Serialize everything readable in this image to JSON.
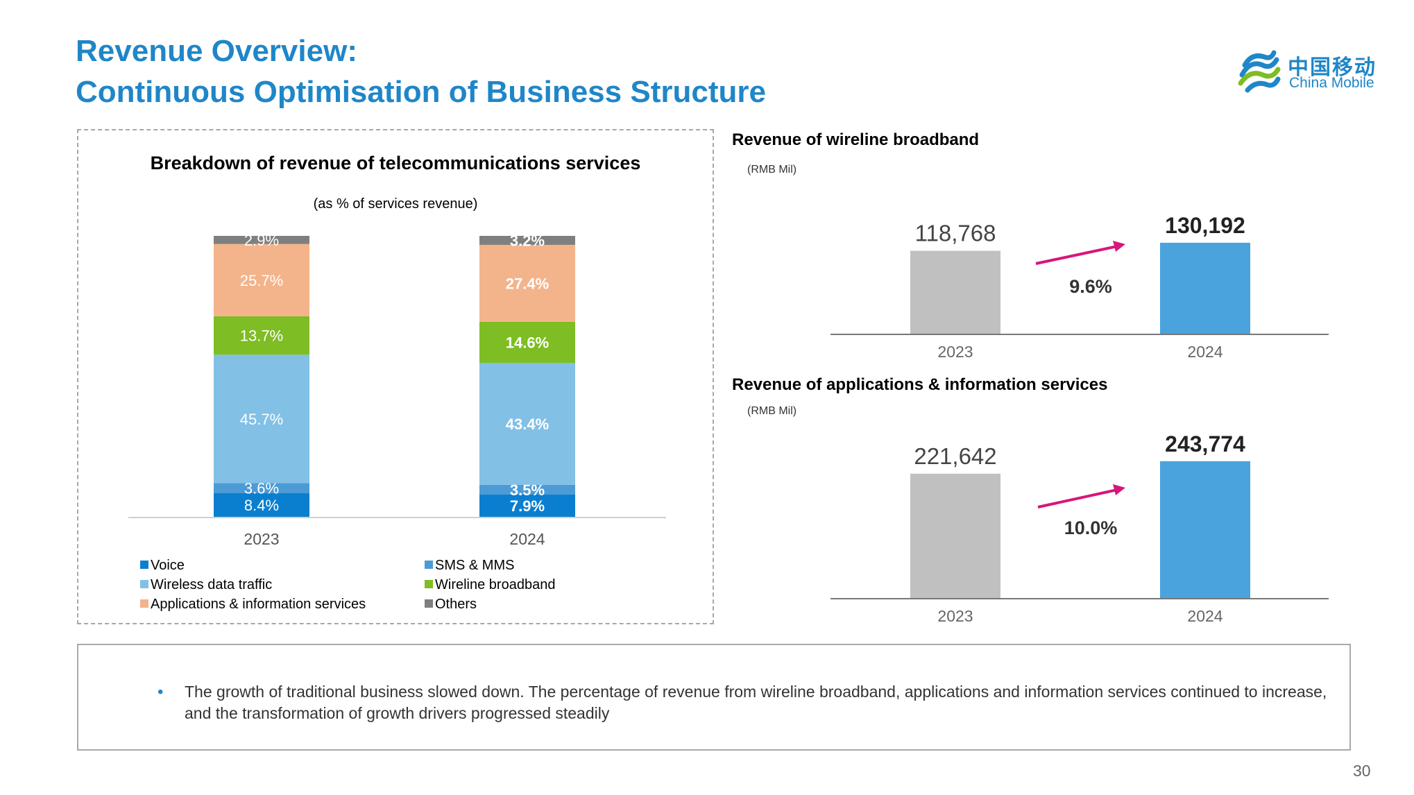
{
  "header": {
    "title_line1": "Revenue Overview:",
    "title_line2": "Continuous Optimisation of Business Structure",
    "logo_cn": "中国移动",
    "logo_en": "China Mobile",
    "page_number": "30"
  },
  "colors": {
    "accent": "#1f86c8",
    "bar_2023": "#c0c0c0",
    "bar_2024": "#4aa3dc",
    "growth_arrow": "#d6177a"
  },
  "chart_data": [
    {
      "type": "bar",
      "stacked": true,
      "title": "Breakdown of revenue of telecommunications services",
      "subtitle": "(as % of services revenue)",
      "categories": [
        "2023",
        "2024"
      ],
      "series": [
        {
          "name": "Voice",
          "values": [
            8.4,
            7.9
          ],
          "labels": [
            "8.4%",
            "7.9%"
          ],
          "color": "#0a7fcf"
        },
        {
          "name": "SMS & MMS",
          "values": [
            3.6,
            3.5
          ],
          "labels": [
            "3.6%",
            "3.5%"
          ],
          "color": "#4c9bd6"
        },
        {
          "name": "Wireless data traffic",
          "values": [
            45.7,
            43.4
          ],
          "labels": [
            "45.7%",
            "43.4%"
          ],
          "color": "#82c0e6"
        },
        {
          "name": "Wireline broadband",
          "values": [
            13.7,
            14.6
          ],
          "labels": [
            "13.7%",
            "14.6%"
          ],
          "color": "#7ebd23"
        },
        {
          "name": "Applications & information services",
          "values": [
            25.7,
            27.4
          ],
          "labels": [
            "25.7%",
            "27.4%"
          ],
          "color": "#f3b48b"
        },
        {
          "name": "Others",
          "values": [
            2.9,
            3.2
          ],
          "labels": [
            "2.9%",
            "3.2%"
          ],
          "color": "#7f7f7f"
        }
      ],
      "ylim": [
        0,
        100
      ],
      "grid": false,
      "legend": "bottom"
    },
    {
      "type": "bar",
      "title": "Revenue of wireline broadband",
      "unit": "(RMB Mil)",
      "categories": [
        "2023",
        "2024"
      ],
      "values": [
        118768,
        130192
      ],
      "value_labels": [
        "118,768",
        "130,192"
      ],
      "growth_label": "9.6%",
      "ylim": [
        0,
        140000
      ],
      "grid": false
    },
    {
      "type": "bar",
      "title": "Revenue of applications & information services",
      "unit": "(RMB Mil)",
      "categories": [
        "2023",
        "2024"
      ],
      "values": [
        221642,
        243774
      ],
      "value_labels": [
        "221,642",
        "243,774"
      ],
      "growth_label": "10.0%",
      "ylim": [
        0,
        262000
      ],
      "grid": false
    }
  ],
  "note": {
    "bullet": "•",
    "text": "The growth of traditional business slowed down. The percentage of revenue from wireline broadband, applications and information services continued to increase, and the transformation of growth drivers progressed steadily"
  }
}
